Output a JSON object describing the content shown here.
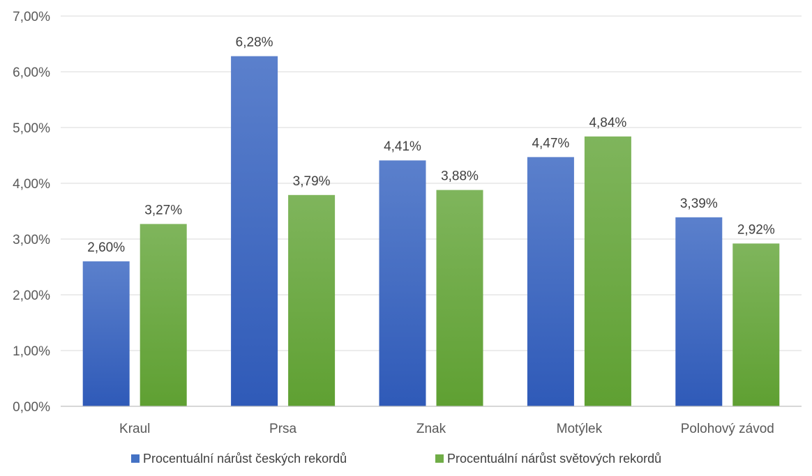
{
  "chart_data": {
    "type": "bar",
    "title": "",
    "xlabel": "",
    "ylabel": "",
    "categories": [
      "Kraul",
      "Prsa",
      "Znak",
      "Motýlek",
      "Polohový závod"
    ],
    "series": [
      {
        "name": "Procentuální nárůst českých rekordů",
        "values": [
          2.6,
          6.28,
          4.41,
          4.47,
          3.39
        ],
        "labels": [
          "2,60%",
          "6,28%",
          "4,41%",
          "4,47%",
          "3,39%"
        ],
        "color": "#4472C4",
        "color_top": "#5B80CC",
        "color_bottom": "#2F5AB8"
      },
      {
        "name": "Procentuální nárůst světových rekordů",
        "values": [
          3.27,
          3.79,
          3.88,
          4.84,
          2.92
        ],
        "labels": [
          "3,27%",
          "3,79%",
          "3,88%",
          "4,84%",
          "2,92%"
        ],
        "color": "#70AD47",
        "color_top": "#7FB55C",
        "color_bottom": "#5FA032"
      }
    ],
    "ylim": [
      0,
      7
    ],
    "yticks": [
      0,
      1,
      2,
      3,
      4,
      5,
      6,
      7
    ],
    "ytick_labels": [
      "0,00%",
      "1,00%",
      "2,00%",
      "3,00%",
      "4,00%",
      "5,00%",
      "6,00%",
      "7,00%"
    ],
    "grid": true,
    "legend_position": "bottom"
  }
}
